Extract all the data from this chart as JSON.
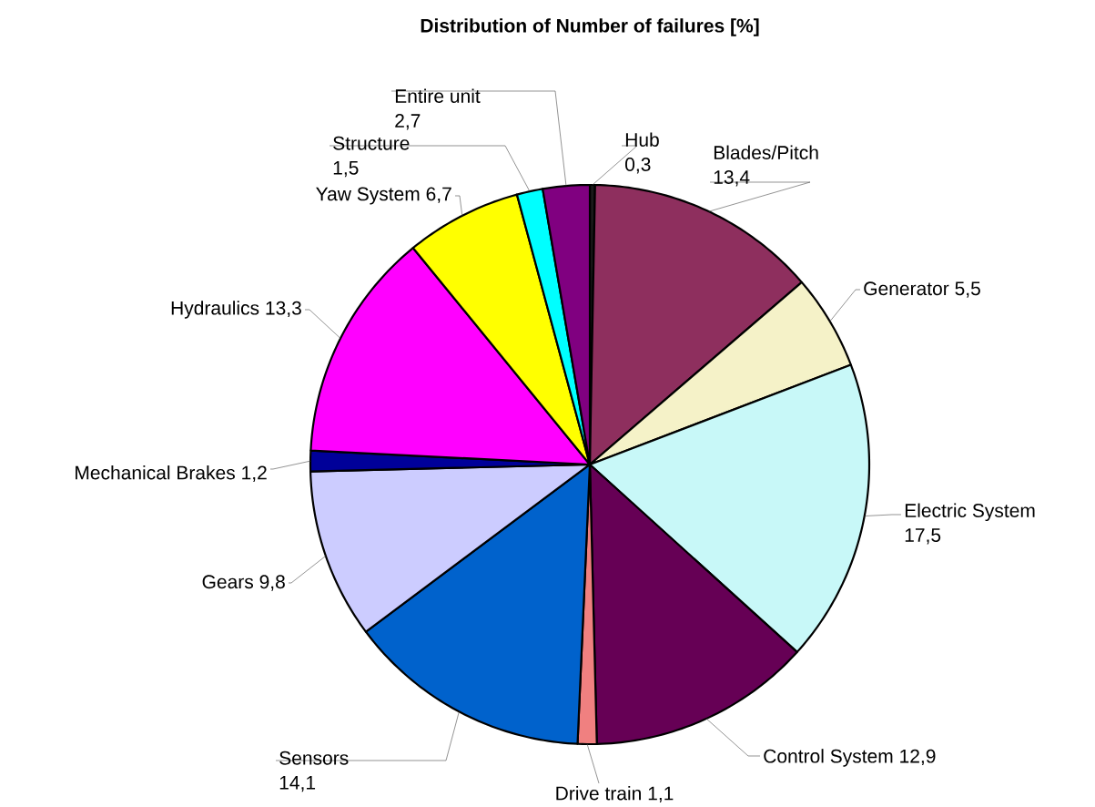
{
  "chart_data": {
    "type": "pie",
    "title": "Distribution of Number of failures [%]",
    "categories": [
      "Hub",
      "Blades/Pitch",
      "Generator",
      "Electric System",
      "Control System",
      "Drive train",
      "Sensors",
      "Gears",
      "Mechanical Brakes",
      "Hydraulics",
      "Yaw System",
      "Structure",
      "Entire unit"
    ],
    "values": [
      0.3,
      13.4,
      5.5,
      17.5,
      12.9,
      1.1,
      14.1,
      9.8,
      1.2,
      13.3,
      6.7,
      1.5,
      2.7
    ],
    "value_labels": [
      "0,3",
      "13,4",
      "5,5",
      "17,5",
      "12,9",
      "1,1",
      "14,1",
      "9,8",
      "1,2",
      "13,3",
      "6,7",
      "1,5",
      "2,7"
    ],
    "colors": [
      "#1a1a1a",
      "#8e2f5e",
      "#f5f2c8",
      "#c8f8f8",
      "#660055",
      "#f08080",
      "#0062cc",
      "#ccccff",
      "#000099",
      "#ff00ff",
      "#ffff00",
      "#00ffff",
      "#800080"
    ]
  }
}
